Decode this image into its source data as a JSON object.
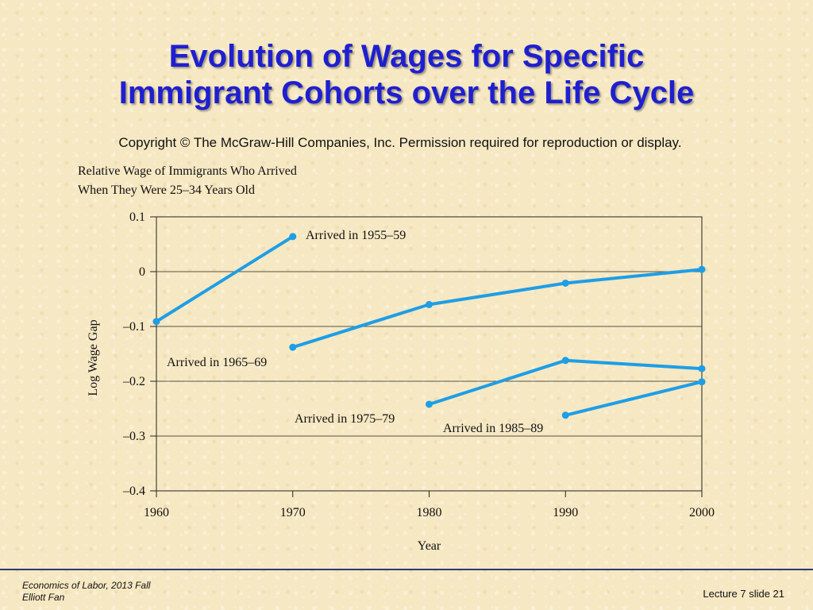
{
  "slide": {
    "title_line1": "Evolution of Wages for Specific",
    "title_line2": "Immigrant Cohorts over the Life Cycle",
    "copyright": "Copyright © The McGraw-Hill Companies, Inc. Permission required for reproduction or display.",
    "footer_course": "Economics of Labor, 2013 Fall",
    "footer_author": "Elliott Fan",
    "footer_slide": "Lecture 7 slide 21"
  },
  "colors": {
    "title": "#1f1fd0",
    "series": "#1e9ee6",
    "grid": "#222222"
  },
  "chart_data": {
    "type": "line",
    "title_line1": "Relative Wage of Immigrants Who Arrived",
    "title_line2": "When They Were 25–34 Years Old",
    "xlabel": "Year",
    "ylabel": "Log Wage Gap",
    "xlim": [
      1960,
      2000
    ],
    "ylim": [
      -0.4,
      0.1
    ],
    "x_ticks": [
      1960,
      1970,
      1980,
      1990,
      2000
    ],
    "y_ticks": [
      0.1,
      0,
      -0.1,
      -0.2,
      -0.3,
      -0.4
    ],
    "y_tick_labels": [
      "0.1",
      "0",
      "–0.1",
      "–0.2",
      "–0.3",
      "–0.4"
    ],
    "grid": "horizontal",
    "series": [
      {
        "name": "Arrived in 1955–59",
        "x": [
          1960,
          1970
        ],
        "y": [
          -0.091,
          0.064
        ]
      },
      {
        "name": "Arrived in 1965–69",
        "x": [
          1970,
          1980,
          1990,
          2000
        ],
        "y": [
          -0.138,
          -0.06,
          -0.021,
          0.004
        ]
      },
      {
        "name": "Arrived in 1975–79",
        "x": [
          1980,
          1990,
          2000
        ],
        "y": [
          -0.242,
          -0.162,
          -0.177
        ]
      },
      {
        "name": "Arrived in 1985–89",
        "x": [
          1990,
          2000
        ],
        "y": [
          -0.262,
          -0.201
        ]
      }
    ]
  }
}
